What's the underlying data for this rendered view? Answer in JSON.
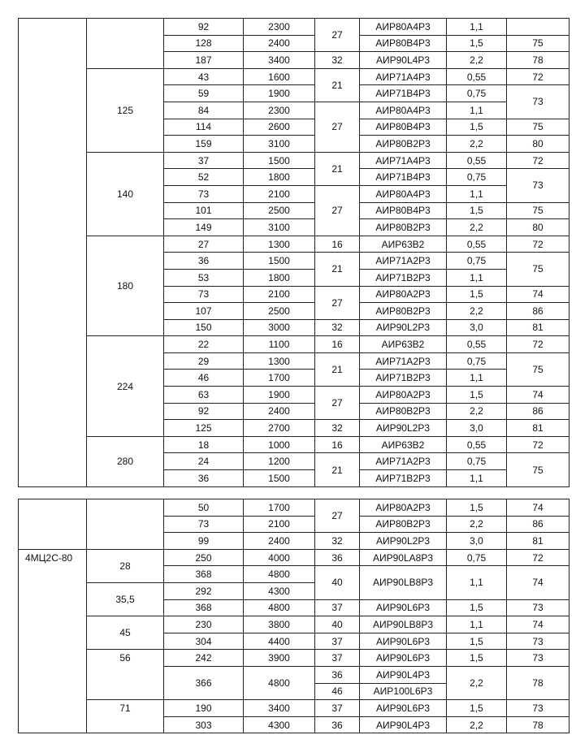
{
  "tables": [
    {
      "rows": [
        [
          {
            "v": "",
            "rs": 28
          },
          {
            "v": "",
            "rs": 3
          },
          "92",
          "2300",
          {
            "v": "27",
            "rs": 2
          },
          "АИР80А4Р3",
          "1,1",
          ""
        ],
        [
          "128",
          "2400",
          "АИР80В4Р3",
          "1,5",
          "75"
        ],
        [
          "187",
          "3400",
          "32",
          "АИР90L4Р3",
          "2,2",
          "78"
        ],
        [
          {
            "v": "125",
            "rs": 5
          },
          "43",
          "1600",
          {
            "v": "21",
            "rs": 2
          },
          "АИР71А4Р3",
          "0,55",
          "72"
        ],
        [
          "59",
          "1900",
          "АИР71В4Р3",
          "0,75",
          {
            "v": "73",
            "rs": 2
          }
        ],
        [
          "84",
          "2300",
          {
            "v": "27",
            "rs": 3
          },
          "АИР80А4Р3",
          "1,1"
        ],
        [
          "114",
          "2600",
          "АИР80В4Р3",
          "1,5",
          "75"
        ],
        [
          "159",
          "3100",
          "АИР80В2Р3",
          "2,2",
          "80"
        ],
        [
          {
            "v": "140",
            "rs": 5
          },
          "37",
          "1500",
          {
            "v": "21",
            "rs": 2
          },
          "АИР71А4Р3",
          "0,55",
          "72"
        ],
        [
          "52",
          "1800",
          "АИР71В4Р3",
          "0,75",
          {
            "v": "73",
            "rs": 2
          }
        ],
        [
          "73",
          "2100",
          {
            "v": "27",
            "rs": 3
          },
          "АИР80А4Р3",
          "1,1"
        ],
        [
          "101",
          "2500",
          "АИР80В4Р3",
          "1,5",
          "75"
        ],
        [
          "149",
          "3100",
          "АИР80В2Р3",
          "2,2",
          "80"
        ],
        [
          {
            "v": "180",
            "rs": 6
          },
          "27",
          "1300",
          "16",
          "АИР63В2",
          "0,55",
          "72"
        ],
        [
          "36",
          "1500",
          {
            "v": "21",
            "rs": 2
          },
          "АИР71А2Р3",
          "0,75",
          {
            "v": "75",
            "rs": 2
          }
        ],
        [
          "53",
          "1800",
          "АИР71В2Р3",
          "1,1"
        ],
        [
          "73",
          "2100",
          {
            "v": "27",
            "rs": 2
          },
          "АИР80А2Р3",
          "1,5",
          "74"
        ],
        [
          "107",
          "2500",
          "АИР80В2Р3",
          "2,2",
          "86"
        ],
        [
          "150",
          "3000",
          "32",
          "АИР90L2Р3",
          "3,0",
          "81"
        ],
        [
          {
            "v": "224",
            "rs": 6
          },
          "22",
          "1100",
          "16",
          "АИР63В2",
          "0,55",
          "72"
        ],
        [
          "29",
          "1300",
          {
            "v": "21",
            "rs": 2
          },
          "АИР71А2Р3",
          "0,75",
          {
            "v": "75",
            "rs": 2
          }
        ],
        [
          "46",
          "1700",
          "АИР71В2Р3",
          "1,1"
        ],
        [
          "63",
          "1900",
          {
            "v": "27",
            "rs": 2
          },
          "АИР80А2Р3",
          "1,5",
          "74"
        ],
        [
          "92",
          "2400",
          "АИР80В2Р3",
          "2,2",
          "86"
        ],
        [
          "125",
          "2700",
          "32",
          "АИР90L2Р3",
          "3,0",
          "81"
        ],
        [
          {
            "v": "280",
            "rs": 3
          },
          "18",
          "1000",
          "16",
          "АИР63В2",
          "0,55",
          "72"
        ],
        [
          "24",
          "1200",
          {
            "v": "21",
            "rs": 2
          },
          "АИР71А2Р3",
          "0,75",
          {
            "v": "75",
            "rs": 2
          }
        ],
        [
          "36",
          "1500",
          "АИР71В2Р3",
          "1,1"
        ]
      ]
    },
    {
      "rows": [
        [
          {
            "v": "",
            "rs": 3
          },
          {
            "v": "",
            "rs": 3
          },
          "50",
          "1700",
          {
            "v": "27",
            "rs": 2
          },
          "АИР80А2Р3",
          "1,5",
          "74"
        ],
        [
          "73",
          "2100",
          "АИР80В2Р3",
          "2,2",
          "86"
        ],
        [
          "99",
          "2400",
          "32",
          "АИР90L2Р3",
          "3,0",
          "81"
        ],
        [
          {
            "v": "4МЦ2С-80",
            "rs": 11,
            "cls": "top left"
          },
          {
            "v": "28",
            "rs": 2
          },
          "250",
          "4000",
          "36",
          "АИР90LА8Р3",
          "0,75",
          "72"
        ],
        [
          "368",
          "4800",
          {
            "v": "40",
            "rs": 2
          },
          {
            "v": "АИР90LВ8Р3",
            "rs": 2
          },
          {
            "v": "1,1",
            "rs": 2
          },
          {
            "v": "74",
            "rs": 2
          }
        ],
        [
          {
            "v": "35,5",
            "rs": 2
          },
          "292",
          "4300"
        ],
        [
          "368",
          "4800",
          "37",
          "АИР90L6Р3",
          "1,5",
          "73"
        ],
        [
          {
            "v": "45",
            "rs": 2
          },
          "230",
          "3800",
          "40",
          "АИР90LВ8Р3",
          "1,1",
          "74"
        ],
        [
          "304",
          "4400",
          "37",
          "АИР90L6Р3",
          "1,5",
          "73"
        ],
        [
          {
            "v": "56",
            "rs": 3,
            "cls": "top"
          },
          "242",
          "3900",
          "37",
          "АИР90L6Р3",
          "1,5",
          "73"
        ],
        [
          {
            "v": "366",
            "rs": 2
          },
          {
            "v": "4800",
            "rs": 2
          },
          "36",
          "АИР90L4Р3",
          {
            "v": "2,2",
            "rs": 2
          },
          {
            "v": "78",
            "rs": 2
          }
        ],
        [
          "46",
          "АИР100L6Р3"
        ],
        [
          {
            "v": "71",
            "rs": 2,
            "cls": "top"
          },
          "190",
          "3400",
          "37",
          "АИР90L6Р3",
          "1,5",
          "73"
        ],
        [
          "303",
          "4300",
          "36",
          "АИР90L4Р3",
          "2,2",
          "78"
        ]
      ]
    }
  ]
}
